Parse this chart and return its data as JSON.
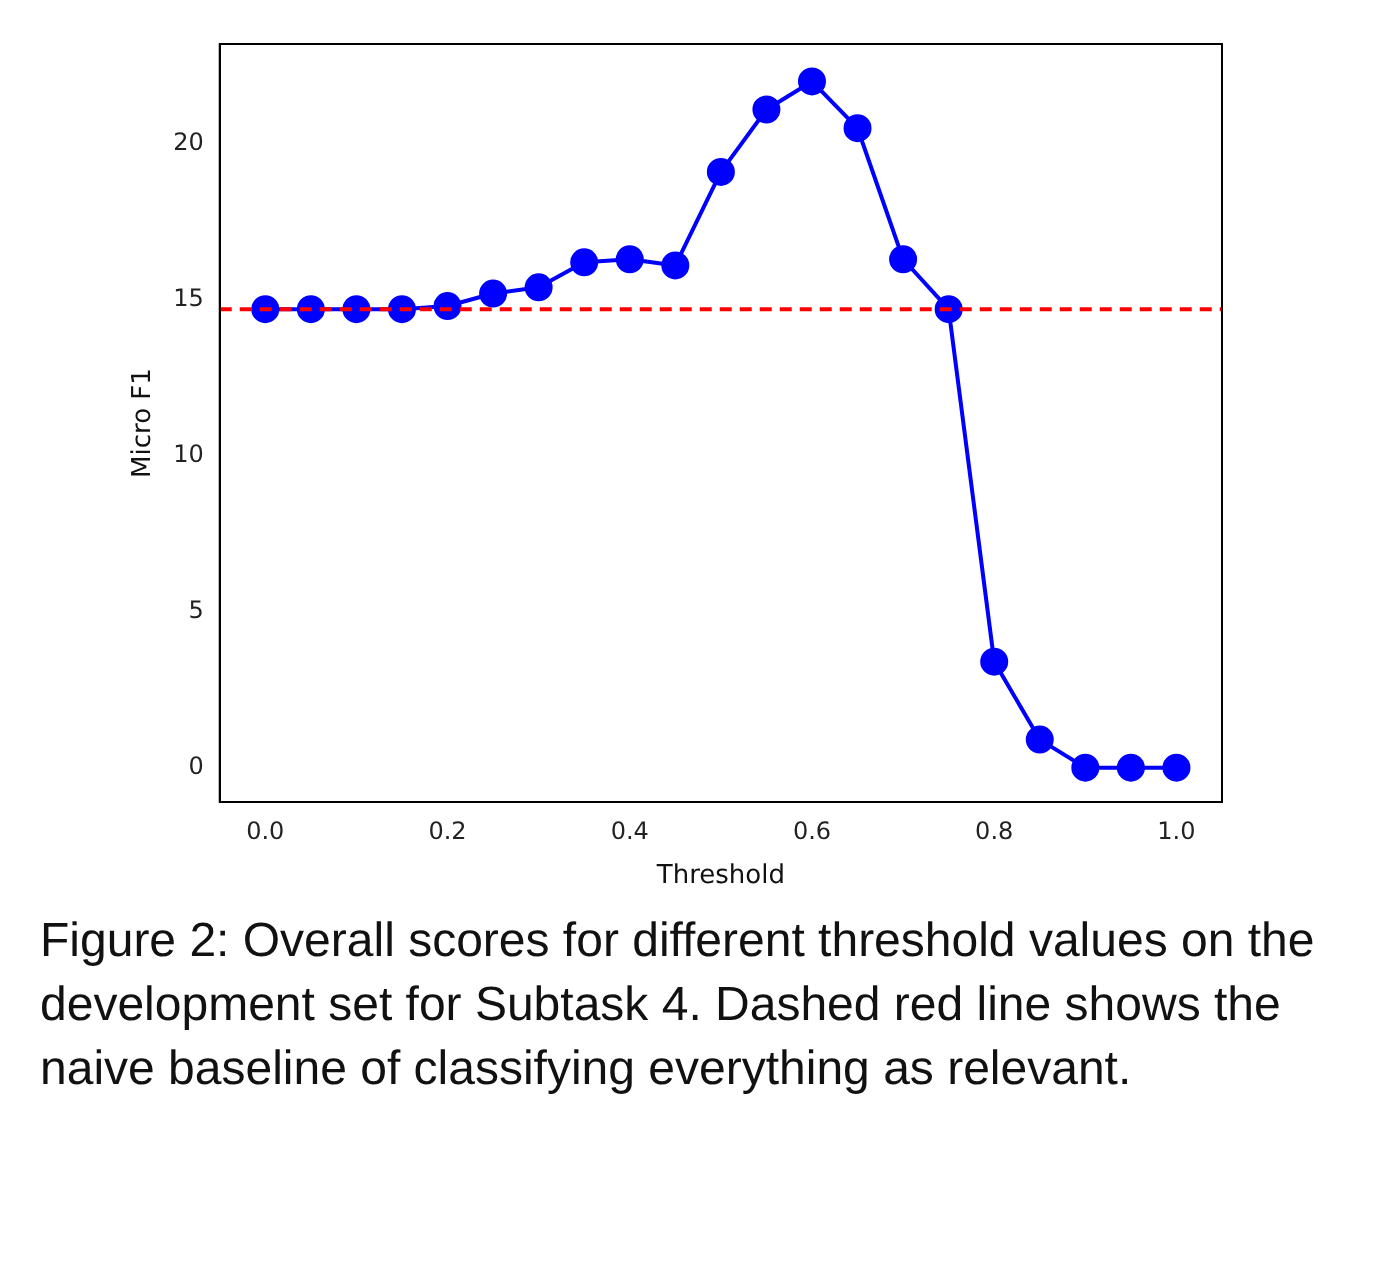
{
  "chart_data": {
    "type": "line",
    "xlabel": "Threshold",
    "ylabel": "Micro F1",
    "x": [
      0,
      0.05,
      0.1,
      0.15,
      0.2,
      0.25,
      0.3,
      0.35,
      0.4,
      0.45,
      0.5,
      0.55,
      0.6,
      0.65,
      0.7,
      0.75,
      0.8,
      0.85,
      0.9,
      0.95,
      1.0
    ],
    "series": [
      {
        "color": "#0000ff",
        "values": [
          14.7,
          14.7,
          14.7,
          14.7,
          14.8,
          15.2,
          15.4,
          16.2,
          16.3,
          16.1,
          19.1,
          21.1,
          22.0,
          20.5,
          16.3,
          14.7,
          3.4,
          0.9,
          0,
          0,
          0
        ]
      }
    ],
    "xlim": [
      -0.05,
      1.05
    ],
    "xticks": [
      {
        "value": 0,
        "label": "0.0"
      },
      0.2,
      0.4,
      0.6,
      0.8,
      {
        "value": 1,
        "label": "1.0"
      }
    ],
    "ylim": [
      -1.1,
      23.2
    ],
    "yticks": [
      0,
      5,
      10,
      15,
      20
    ],
    "ref_lines": [
      {
        "axis": "y",
        "value": 14.7,
        "color": "#ff0000",
        "line_style": "dashed"
      }
    ],
    "marker": "circle",
    "line_style": "solid",
    "grid": false,
    "legend": false,
    "annotations": [
      "Figure 2: Overall scores for different threshold values on the development set for Subtask 4. Dashed red line shows the naive baseline of classifying everything as relevant."
    ]
  }
}
